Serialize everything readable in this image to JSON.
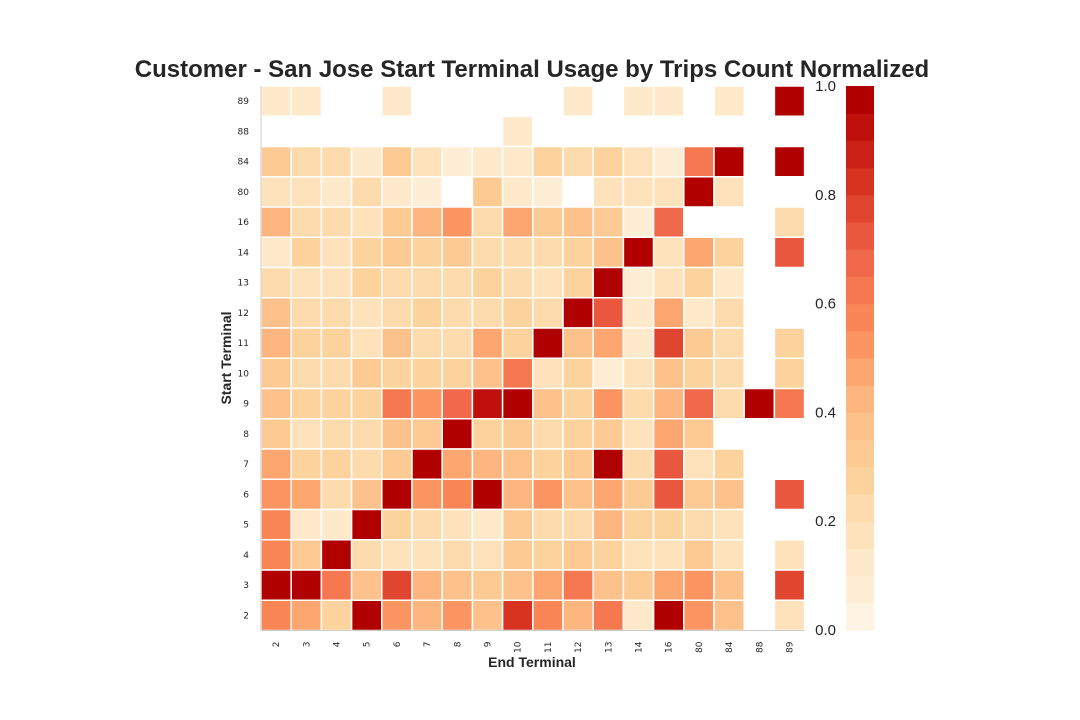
{
  "chart_data": {
    "type": "heatmap",
    "title": "Customer - San Jose Start Terminal Usage by Trips Count Normalized",
    "xlabel": "End Terminal",
    "ylabel": "Start Terminal",
    "x_categories": [
      "2",
      "3",
      "4",
      "5",
      "6",
      "7",
      "8",
      "9",
      "10",
      "11",
      "12",
      "13",
      "14",
      "16",
      "80",
      "84",
      "88",
      "89"
    ],
    "y_categories": [
      "89",
      "88",
      "84",
      "80",
      "16",
      "14",
      "13",
      "12",
      "11",
      "10",
      "9",
      "8",
      "7",
      "6",
      "5",
      "4",
      "3",
      "2"
    ],
    "values": [
      [
        0.1,
        0.1,
        null,
        null,
        0.1,
        null,
        null,
        null,
        null,
        null,
        0.1,
        null,
        0.1,
        0.1,
        null,
        0.1,
        null,
        1.0
      ],
      [
        null,
        null,
        null,
        null,
        null,
        null,
        null,
        null,
        0.1,
        null,
        null,
        null,
        null,
        null,
        null,
        null,
        null,
        null
      ],
      [
        0.3,
        0.2,
        0.2,
        0.1,
        0.3,
        0.15,
        0.08,
        0.12,
        0.1,
        0.25,
        0.2,
        0.25,
        0.18,
        0.08,
        0.6,
        1.0,
        null,
        1.0
      ],
      [
        0.15,
        0.15,
        0.1,
        0.2,
        0.12,
        0.08,
        null,
        0.3,
        0.12,
        0.08,
        null,
        0.15,
        0.15,
        0.18,
        1.0,
        0.18,
        null,
        null
      ],
      [
        0.4,
        0.2,
        0.2,
        0.15,
        0.3,
        0.4,
        0.5,
        0.2,
        0.45,
        0.3,
        0.35,
        0.3,
        0.08,
        0.65,
        null,
        null,
        null,
        0.2
      ],
      [
        0.1,
        0.25,
        0.15,
        0.25,
        0.3,
        0.25,
        0.3,
        0.22,
        0.2,
        0.2,
        0.25,
        0.35,
        1.0,
        0.15,
        0.45,
        0.25,
        null,
        0.7
      ],
      [
        0.2,
        0.18,
        0.18,
        0.25,
        0.2,
        0.22,
        0.2,
        0.28,
        0.2,
        0.18,
        0.25,
        1.0,
        0.08,
        0.15,
        0.25,
        0.12,
        null,
        null
      ],
      [
        0.35,
        0.2,
        0.2,
        0.15,
        0.2,
        0.25,
        0.22,
        0.2,
        0.25,
        0.2,
        1.0,
        0.7,
        0.12,
        0.45,
        0.1,
        0.2,
        null,
        null
      ],
      [
        0.4,
        0.25,
        0.25,
        0.18,
        0.35,
        0.2,
        0.2,
        0.45,
        0.25,
        1.0,
        0.35,
        0.45,
        0.12,
        0.75,
        0.3,
        0.2,
        null,
        0.25
      ],
      [
        0.3,
        0.2,
        0.2,
        0.3,
        0.25,
        0.25,
        0.25,
        0.35,
        0.6,
        0.15,
        0.25,
        0.08,
        0.15,
        0.35,
        0.25,
        0.2,
        null,
        0.25
      ],
      [
        0.35,
        0.25,
        0.25,
        0.25,
        0.6,
        0.5,
        0.65,
        0.9,
        1.0,
        0.35,
        0.25,
        0.5,
        0.2,
        0.4,
        0.65,
        0.2,
        1.0,
        0.6
      ],
      [
        0.3,
        0.15,
        0.2,
        0.2,
        0.35,
        0.3,
        1.0,
        0.25,
        0.3,
        0.2,
        0.25,
        0.3,
        0.15,
        0.45,
        0.3,
        null,
        null,
        null
      ],
      [
        0.45,
        0.25,
        0.25,
        0.2,
        0.3,
        1.0,
        0.45,
        0.4,
        0.35,
        0.25,
        0.3,
        1.0,
        0.2,
        0.7,
        0.15,
        0.25,
        null,
        null
      ],
      [
        0.5,
        0.45,
        0.2,
        0.35,
        1.0,
        0.5,
        0.55,
        1.0,
        0.4,
        0.5,
        0.35,
        0.45,
        0.3,
        0.7,
        0.3,
        0.35,
        null,
        0.7
      ],
      [
        0.55,
        0.12,
        0.1,
        1.0,
        0.25,
        0.2,
        0.15,
        0.1,
        0.3,
        0.22,
        0.2,
        0.4,
        0.25,
        0.25,
        0.2,
        0.15,
        null,
        null
      ],
      [
        0.55,
        0.3,
        1.0,
        0.2,
        0.15,
        0.15,
        0.2,
        0.15,
        0.3,
        0.25,
        0.3,
        0.25,
        0.15,
        0.18,
        0.3,
        0.15,
        null,
        0.15
      ],
      [
        1.0,
        1.0,
        0.6,
        0.35,
        0.75,
        0.4,
        0.35,
        0.3,
        0.35,
        0.45,
        0.6,
        0.35,
        0.3,
        0.45,
        0.5,
        0.35,
        null,
        0.75
      ],
      [
        0.55,
        0.45,
        0.25,
        1.0,
        0.5,
        0.4,
        0.5,
        0.35,
        0.8,
        0.55,
        0.4,
        0.6,
        0.12,
        1.0,
        0.5,
        0.35,
        null,
        0.15
      ]
    ],
    "colorbar": {
      "range": [
        0,
        1
      ],
      "ticks": [
        "0.0",
        "0.2",
        "0.4",
        "0.6",
        "0.8",
        "1.0"
      ],
      "bins": 20,
      "colormap": "OrRd"
    },
    "colors": {
      "low": "#fff7ec",
      "high": "#990000"
    },
    "grid": false
  }
}
